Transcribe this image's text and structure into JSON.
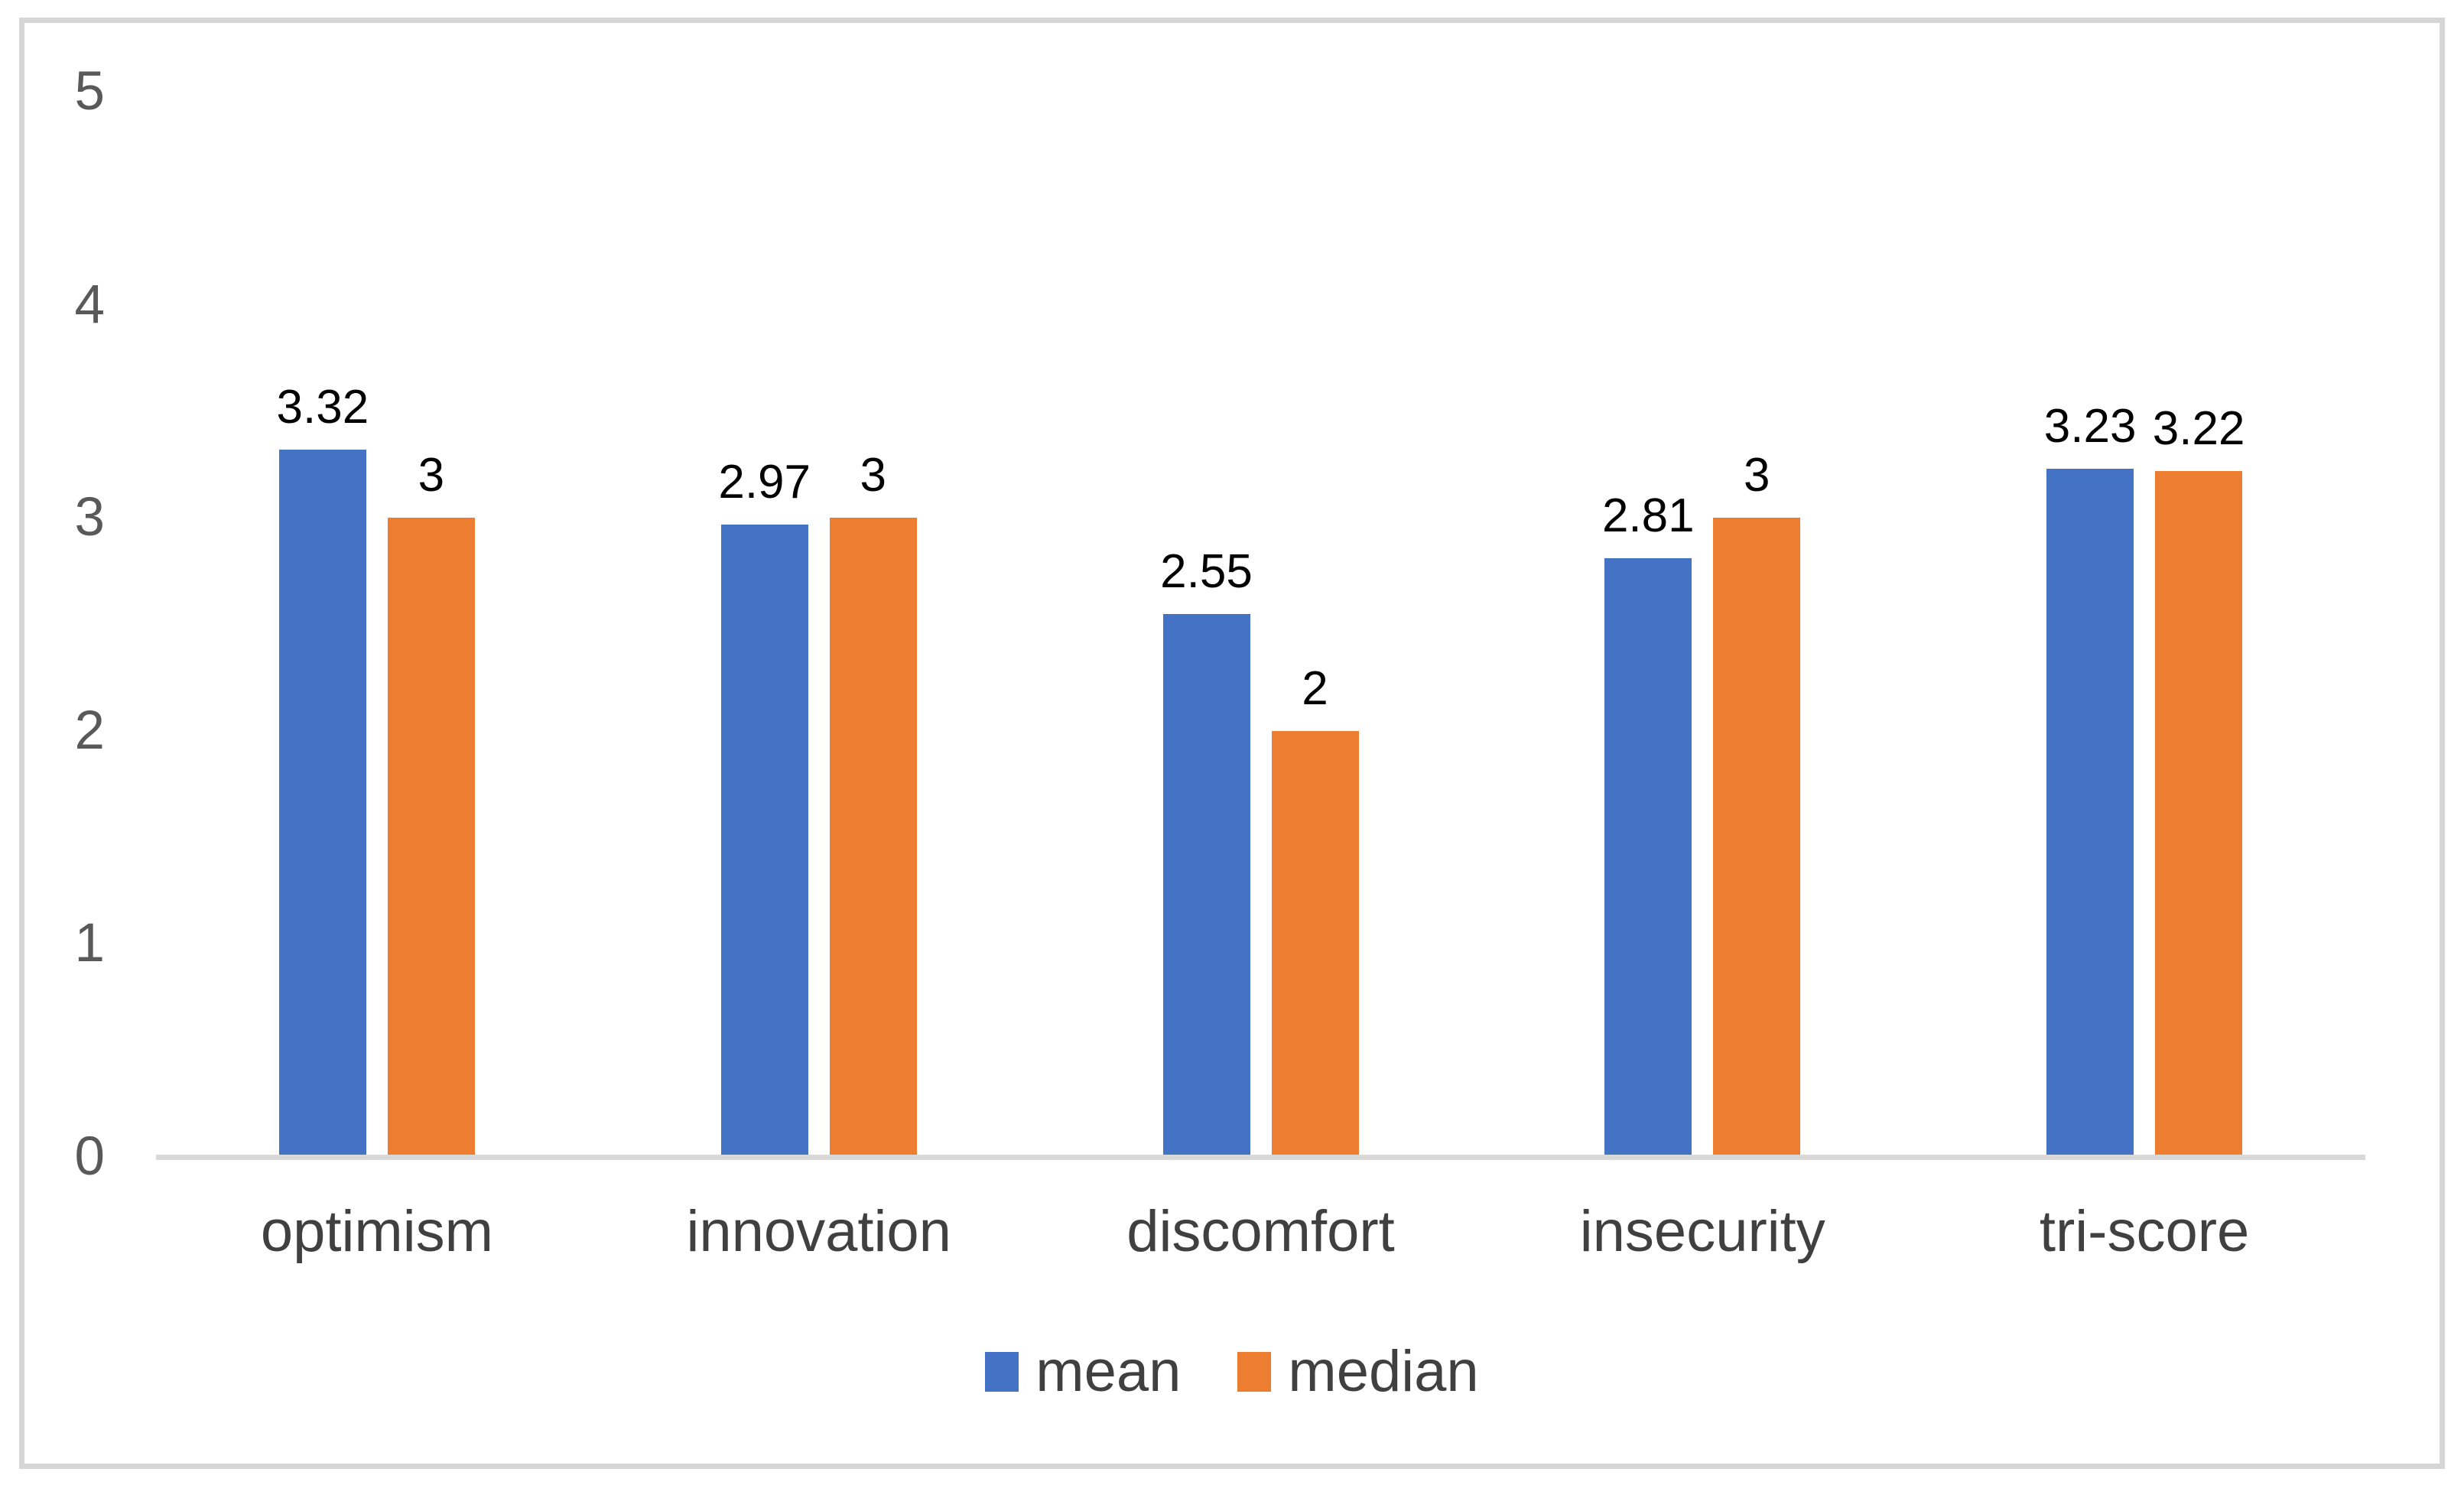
{
  "chart_data": {
    "type": "bar",
    "title": "",
    "categories": [
      "optimism",
      "innovation",
      "discomfort",
      "insecurity",
      "tri-score"
    ],
    "series": [
      {
        "name": "mean",
        "color": "#4472C4",
        "values": [
          3.32,
          2.97,
          2.55,
          2.81,
          3.23
        ],
        "labels": [
          "3.32",
          "2.97",
          "2.55",
          "2.81",
          "3.23"
        ]
      },
      {
        "name": "median",
        "color": "#ED7D31",
        "values": [
          3,
          3,
          2,
          3,
          3.22
        ],
        "labels": [
          "3",
          "3",
          "2",
          "3",
          "3.22"
        ]
      }
    ],
    "ylim": [
      0,
      5
    ],
    "yticks": [
      "0",
      "1",
      "2",
      "3",
      "4",
      "5"
    ],
    "grid": false,
    "legend_position": "bottom",
    "axis_line_color": "#d9d9d9",
    "tick_label_color": "#595959",
    "category_label_color": "#404040",
    "data_label_color": "#000000",
    "frame_border_color": "#d6d6d6"
  }
}
